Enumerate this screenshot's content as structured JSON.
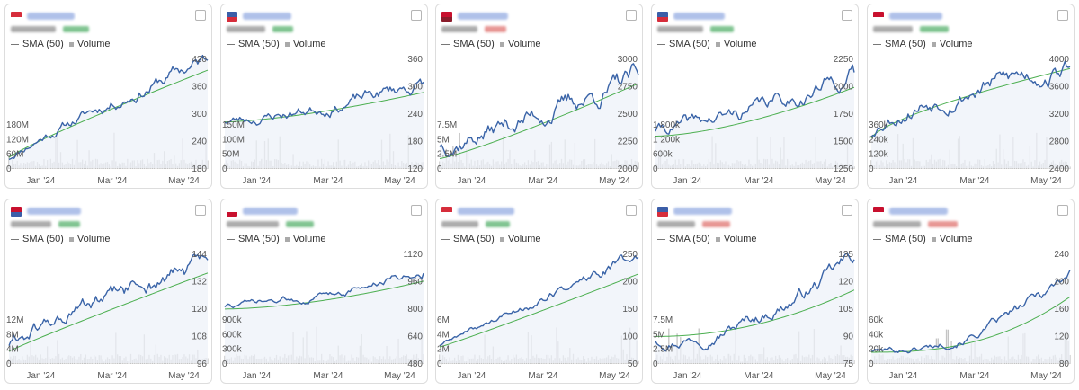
{
  "legend": {
    "sma_label": "SMA (50)",
    "volume_label": "Volume"
  },
  "colors": {
    "price_line": "#3a64a8",
    "price_fill": "#eef2f8",
    "sma_line": "#4caf50",
    "volume_bar": "#c4c4c4",
    "axis_text": "#555555",
    "up": "#2e9e4a",
    "down": "#d9534f"
  },
  "x_labels": [
    "Jan '24",
    "Mar '24",
    "May '24"
  ],
  "cards": [
    {
      "flag_colors": [
        "#d62d3b",
        "#ffffff"
      ],
      "change_dir": "up",
      "chart_data": {
        "type": "line",
        "price_ticks": [
          "180",
          "240",
          "300",
          "360",
          "420"
        ],
        "price_range": [
          165,
          445
        ],
        "volume_ticks": [
          "0",
          "60M",
          "120M",
          "180M"
        ],
        "volume_max": 300,
        "price_start": 190,
        "price_end": 440,
        "sma_start": 192,
        "sma_end": 415,
        "shape": 0.85,
        "volatility": 0.028,
        "seed": 11
      }
    },
    {
      "flag_colors": [
        "#3b5ea8",
        "#d62d3b"
      ],
      "change_dir": "up",
      "chart_data": {
        "type": "line",
        "price_ticks": [
          "120",
          "180",
          "240",
          "300",
          "360"
        ],
        "price_range": [
          100,
          390
        ],
        "volume_ticks": [
          "0",
          "50M",
          "100M",
          "150M"
        ],
        "volume_max": 250,
        "price_start": 225,
        "price_end": 325,
        "sma_start": 222,
        "sma_end": 300,
        "shape": 1.4,
        "volatility": 0.035,
        "seed": 23
      }
    },
    {
      "flag_colors": [
        "#c8102e",
        "#8a1c2b"
      ],
      "change_dir": "down",
      "chart_data": {
        "type": "line",
        "price_ticks": [
          "2000",
          "2250",
          "2500",
          "2750",
          "3000"
        ],
        "price_range": [
          1990,
          3040
        ],
        "volume_ticks": [
          "0",
          "2.5M",
          "5M",
          "7.5M"
        ],
        "volume_max": 13,
        "price_start": 2220,
        "price_end": 2840,
        "sma_start": 2080,
        "sma_end": 2800,
        "shape": 1.1,
        "volatility": 0.022,
        "seed": 37
      }
    },
    {
      "flag_colors": [
        "#3b5ea8",
        "#d62d3b"
      ],
      "change_dir": "up",
      "chart_data": {
        "type": "line",
        "price_ticks": [
          "1250",
          "1500",
          "1750",
          "2000",
          "2250"
        ],
        "price_range": [
          1200,
          2300
        ],
        "volume_ticks": [
          "0",
          "600k",
          "1 200k",
          "1 800k"
        ],
        "volume_max": 3200,
        "price_start": 1590,
        "price_end": 2150,
        "sma_start": 1520,
        "sma_end": 2010,
        "shape": 1.5,
        "volatility": 0.025,
        "seed": 41
      }
    },
    {
      "flag_colors": [
        "#c8102e",
        "#ffffff"
      ],
      "change_dir": "up",
      "chart_data": {
        "type": "line",
        "price_ticks": [
          "2400",
          "2800",
          "3200",
          "3600",
          "4000"
        ],
        "price_range": [
          2350,
          4300
        ],
        "volume_ticks": [
          "0",
          "120k",
          "240k",
          "360k"
        ],
        "volume_max": 600,
        "price_start": 2950,
        "price_end": 4150,
        "sma_start": 2880,
        "sma_end": 4120,
        "shape": 0.55,
        "volatility": 0.025,
        "seed": 53
      }
    },
    {
      "flag_colors": [
        "#c8102e",
        "#3b5ea8"
      ],
      "change_dir": "up",
      "chart_data": {
        "type": "line",
        "price_ticks": [
          "96",
          "108",
          "120",
          "132",
          "144"
        ],
        "price_range": [
          94,
          150
        ],
        "volume_ticks": [
          "0",
          "4M",
          "8M",
          "12M"
        ],
        "volume_max": 17,
        "price_start": 104,
        "price_end": 145,
        "sma_start": 100,
        "sma_end": 140,
        "shape": 0.9,
        "volatility": 0.02,
        "seed": 61
      }
    },
    {
      "flag_colors": [
        "#ffffff",
        "#c8102e"
      ],
      "change_dir": "up",
      "chart_data": {
        "type": "line",
        "price_ticks": [
          "480",
          "640",
          "800",
          "960",
          "1120"
        ],
        "price_range": [
          450,
          1180
        ],
        "volume_ticks": [
          "0",
          "300k",
          "600k",
          "900k"
        ],
        "volume_max": 1200,
        "price_start": 830,
        "price_end": 1060,
        "sma_start": 810,
        "sma_end": 995,
        "shape": 1.6,
        "volatility": 0.015,
        "seed": 73
      }
    },
    {
      "flag_colors": [
        "#d62d3b",
        "#ffffff"
      ],
      "change_dir": "up",
      "chart_data": {
        "type": "line",
        "price_ticks": [
          "50",
          "100",
          "150",
          "200",
          "250"
        ],
        "price_range": [
          45,
          285
        ],
        "volume_ticks": [
          "0",
          "2M",
          "4M",
          "6M"
        ],
        "volume_max": 8.5,
        "price_start": 85,
        "price_end": 280,
        "sma_start": 80,
        "sma_end": 240,
        "shape": 1.0,
        "volatility": 0.03,
        "seed": 89
      }
    },
    {
      "flag_colors": [
        "#3b5ea8",
        "#d62d3b"
      ],
      "change_dir": "down",
      "chart_data": {
        "type": "line",
        "price_ticks": [
          "75",
          "90",
          "105",
          "120",
          "135"
        ],
        "price_range": [
          72,
          138
        ],
        "volume_ticks": [
          "0",
          "2.5M",
          "5M",
          "7.5M"
        ],
        "volume_max": 10,
        "price_start": 86,
        "price_end": 135,
        "sma_start": 88,
        "sma_end": 116,
        "shape": 1.9,
        "volatility": 0.022,
        "seed": 97
      }
    },
    {
      "flag_colors": [
        "#c8102e",
        "#ffffff"
      ],
      "change_dir": "down",
      "chart_data": {
        "type": "line",
        "price_ticks": [
          "80",
          "120",
          "160",
          "200",
          "240"
        ],
        "price_range": [
          78,
          250
        ],
        "volume_ticks": [
          "0",
          "20k",
          "40k",
          "60k"
        ],
        "volume_max": 90,
        "price_start": 98,
        "price_end": 225,
        "sma_start": 95,
        "sma_end": 182,
        "shape": 2.4,
        "volatility": 0.03,
        "seed": 101
      }
    }
  ]
}
